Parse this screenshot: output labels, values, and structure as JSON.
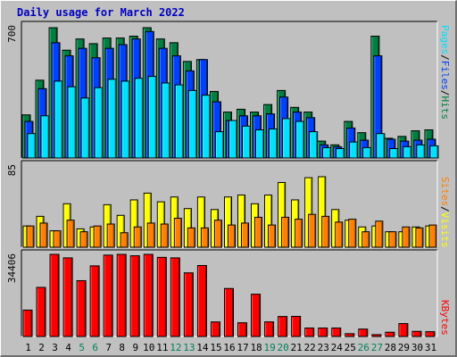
{
  "chart_data": {
    "type": "bar",
    "title": "Daily usage for March 2022",
    "categories": [
      "1",
      "2",
      "3",
      "4",
      "5",
      "6",
      "7",
      "8",
      "9",
      "10",
      "11",
      "12",
      "13",
      "14",
      "15",
      "16",
      "17",
      "18",
      "19",
      "20",
      "21",
      "22",
      "23",
      "24",
      "25",
      "26",
      "27",
      "28",
      "29",
      "30",
      "31"
    ],
    "weekend_days": [
      "5",
      "6",
      "12",
      "13",
      "19",
      "20",
      "26",
      "27"
    ],
    "panels": [
      {
        "name": "hits",
        "ymax_label": "700",
        "ymax": 700,
        "side_label": [
          "Pages",
          "Files",
          "Hits"
        ],
        "series": [
          {
            "name": "Hits",
            "color": "#008040",
            "values": [
              230,
              415,
              695,
              575,
              635,
              610,
              640,
              640,
              650,
              695,
              635,
              615,
              515,
              525,
              355,
              245,
              260,
              245,
              285,
              360,
              270,
              245,
              90,
              70,
              195,
              135,
              650,
              105,
              115,
              145,
              150
            ]
          },
          {
            "name": "Files",
            "color": "#0040ff",
            "values": [
              195,
              370,
              615,
              545,
              585,
              535,
              585,
              605,
              635,
              675,
              585,
              545,
              465,
              525,
              300,
              200,
              225,
              225,
              235,
              325,
              245,
              215,
              70,
              60,
              160,
              95,
              545,
              100,
              90,
              95,
              100
            ]
          },
          {
            "name": "Pages",
            "color": "#00e0ff",
            "values": [
              130,
              225,
              410,
              380,
              320,
              375,
              420,
              410,
              425,
              435,
              400,
              390,
              360,
              335,
              140,
              200,
              170,
              150,
              155,
              210,
              195,
              140,
              55,
              50,
              85,
              55,
              130,
              50,
              60,
              70,
              65
            ]
          }
        ]
      },
      {
        "name": "visits",
        "ymax_label": "85",
        "ymax": 85,
        "side_label": [
          "Sites",
          "Visits"
        ],
        "series": [
          {
            "name": "Visits",
            "color": "#ffff00",
            "values": [
              22,
              32,
              17,
              45,
              19,
              21,
              44,
              33,
              49,
              56,
              47,
              52,
              40,
              52,
              39,
              52,
              54,
              45,
              54,
              67,
              49,
              72,
              73,
              39,
              28,
              21,
              22,
              16,
              16,
              21,
              22
            ]
          },
          {
            "name": "Sites",
            "color": "#ff8000",
            "values": [
              22,
              25,
              17,
              28,
              16,
              22,
              24,
              15,
              21,
              25,
              24,
              30,
              20,
              20,
              28,
              23,
              25,
              31,
              23,
              31,
              29,
              34,
              32,
              26,
              29,
              16,
              27,
              16,
              21,
              20,
              23
            ]
          }
        ]
      },
      {
        "name": "kbytes",
        "ymax_label": "34406",
        "ymax": 34406,
        "side_label": [
          "KBytes"
        ],
        "series": [
          {
            "name": "KBytes",
            "color": "#ff0000",
            "values": [
              11060,
              20560,
              34406,
              32940,
              23380,
              29590,
              34100,
              34406,
              33820,
              34406,
              33150,
              32940,
              26660,
              29740,
              6100,
              20100,
              5740,
              17710,
              6120,
              8370,
              8420,
              3540,
              3540,
              3540,
              1180,
              3100,
              770,
              1800,
              5400,
              2150,
              2010
            ]
          }
        ]
      }
    ]
  }
}
